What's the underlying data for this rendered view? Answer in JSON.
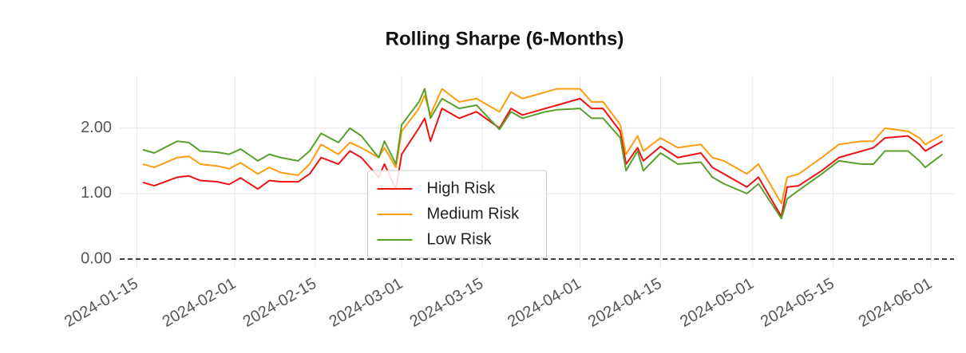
{
  "chart_data": {
    "type": "line",
    "title": "Rolling Sharpe (6-Months)",
    "x": [
      "2024-01-16",
      "2024-01-18",
      "2024-01-22",
      "2024-01-24",
      "2024-01-26",
      "2024-01-29",
      "2024-01-31",
      "2024-02-02",
      "2024-02-05",
      "2024-02-07",
      "2024-02-09",
      "2024-02-12",
      "2024-02-14",
      "2024-02-16",
      "2024-02-19",
      "2024-02-21",
      "2024-02-23",
      "2024-02-26",
      "2024-02-27",
      "2024-02-29",
      "2024-03-01",
      "2024-03-04",
      "2024-03-05",
      "2024-03-06",
      "2024-03-08",
      "2024-03-11",
      "2024-03-14",
      "2024-03-18",
      "2024-03-20",
      "2024-03-22",
      "2024-03-26",
      "2024-03-28",
      "2024-04-01",
      "2024-04-03",
      "2024-04-05",
      "2024-04-08",
      "2024-04-09",
      "2024-04-11",
      "2024-04-12",
      "2024-04-15",
      "2024-04-18",
      "2024-04-22",
      "2024-04-24",
      "2024-04-26",
      "2024-04-30",
      "2024-05-02",
      "2024-05-06",
      "2024-05-07",
      "2024-05-09",
      "2024-05-13",
      "2024-05-16",
      "2024-05-20",
      "2024-05-22",
      "2024-05-24",
      "2024-05-28",
      "2024-05-30",
      "2024-05-31",
      "2024-06-03"
    ],
    "series": [
      {
        "name": "High Risk",
        "color": "#ee1111",
        "values": [
          1.17,
          1.12,
          1.25,
          1.27,
          1.2,
          1.18,
          1.14,
          1.24,
          1.07,
          1.2,
          1.18,
          1.18,
          1.3,
          1.55,
          1.45,
          1.65,
          1.55,
          1.25,
          1.45,
          1.07,
          1.6,
          2.0,
          2.15,
          1.8,
          2.3,
          2.15,
          2.25,
          2.0,
          2.3,
          2.2,
          2.3,
          2.35,
          2.45,
          2.3,
          2.3,
          1.95,
          1.45,
          1.7,
          1.5,
          1.72,
          1.55,
          1.62,
          1.4,
          1.3,
          1.1,
          1.25,
          0.65,
          1.1,
          1.12,
          1.35,
          1.55,
          1.65,
          1.7,
          1.85,
          1.88,
          1.75,
          1.65,
          1.8
        ]
      },
      {
        "name": "Medium Risk",
        "color": "#ff9b0f",
        "values": [
          1.45,
          1.4,
          1.55,
          1.57,
          1.45,
          1.42,
          1.38,
          1.47,
          1.3,
          1.4,
          1.32,
          1.28,
          1.45,
          1.75,
          1.6,
          1.78,
          1.7,
          1.55,
          1.7,
          1.4,
          1.95,
          2.3,
          2.5,
          2.2,
          2.6,
          2.4,
          2.45,
          2.25,
          2.55,
          2.45,
          2.55,
          2.6,
          2.6,
          2.4,
          2.4,
          2.05,
          1.6,
          1.88,
          1.65,
          1.85,
          1.7,
          1.75,
          1.55,
          1.5,
          1.3,
          1.45,
          0.85,
          1.25,
          1.3,
          1.55,
          1.75,
          1.8,
          1.8,
          2.0,
          1.95,
          1.85,
          1.75,
          1.9
        ]
      },
      {
        "name": "Low Risk",
        "color": "#5aa02c",
        "values": [
          1.67,
          1.62,
          1.8,
          1.78,
          1.65,
          1.63,
          1.6,
          1.68,
          1.5,
          1.6,
          1.55,
          1.5,
          1.65,
          1.92,
          1.78,
          2.0,
          1.88,
          1.55,
          1.8,
          1.45,
          2.05,
          2.4,
          2.6,
          2.15,
          2.45,
          2.3,
          2.35,
          1.98,
          2.25,
          2.15,
          2.25,
          2.28,
          2.3,
          2.15,
          2.15,
          1.85,
          1.35,
          1.65,
          1.35,
          1.62,
          1.45,
          1.48,
          1.25,
          1.15,
          1.0,
          1.15,
          0.62,
          0.92,
          1.05,
          1.3,
          1.5,
          1.45,
          1.45,
          1.65,
          1.65,
          1.5,
          1.4,
          1.6
        ]
      }
    ],
    "xlim": [
      "2024-01-12",
      "2024-06-05"
    ],
    "xticks": [
      "2024-01-15",
      "2024-02-01",
      "2024-02-15",
      "2024-03-01",
      "2024-03-15",
      "2024-04-01",
      "2024-04-15",
      "2024-05-01",
      "2024-05-15",
      "2024-06-01"
    ],
    "ylim": [
      -0.12,
      2.8
    ],
    "yticks": [
      {
        "value": 0,
        "label": "0.00"
      },
      {
        "value": 1,
        "label": "1.00"
      },
      {
        "value": 2,
        "label": "2.00"
      }
    ],
    "hline": {
      "y": 0,
      "color": "#000000",
      "style": "dashed"
    },
    "grid": true,
    "legend": "lower center"
  }
}
